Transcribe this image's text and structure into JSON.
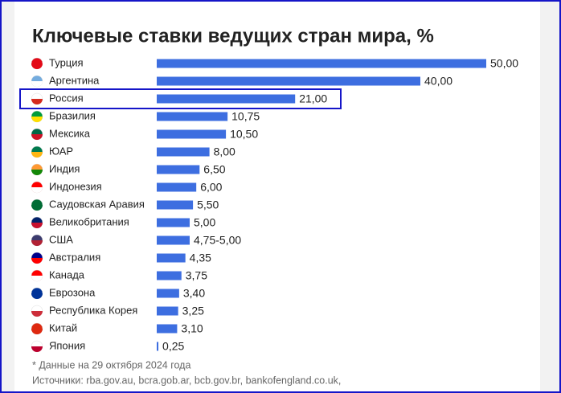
{
  "chart_data": {
    "type": "bar",
    "orientation": "horizontal",
    "title": "Ключевые ставки ведущих стран мира, %",
    "categories": [
      "Турция",
      "Аргентина",
      "Россия",
      "Бразилия",
      "Мексика",
      "ЮАР",
      "Индия",
      "Индонезия",
      "Саудовская Аравия",
      "Великобритания",
      "США",
      "Австралия",
      "Канада",
      "Еврозона",
      "Республика Корея",
      "Китай",
      "Япония"
    ],
    "values": [
      50,
      40,
      21,
      10.75,
      10.5,
      8,
      6.5,
      6,
      5.5,
      5,
      5,
      4.35,
      3.75,
      3.4,
      3.25,
      3.1,
      0.25
    ],
    "value_labels": [
      "50,00",
      "40,00",
      "21,00",
      "10,75",
      "10,50",
      "8,00",
      "6,50",
      "6,00",
      "5,50",
      "5,00",
      "4,75-5,00",
      "4,35",
      "3,75",
      "3,40",
      "3,25",
      "3,10",
      "0,25"
    ],
    "color": "#3d6ee0",
    "highlight_index": 2,
    "notes": [
      "* Данные на 29 октября 2024 года",
      "Источники: rba.gov.au, bcra.gob.ar, bcb.gov.br, bankofengland.co.uk,"
    ]
  }
}
